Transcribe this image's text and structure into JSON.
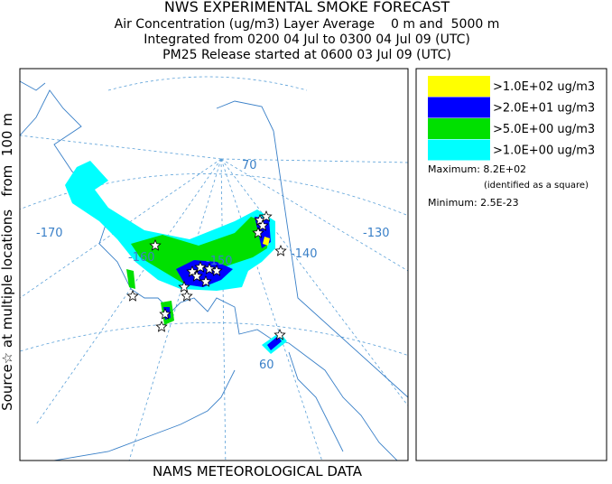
{
  "header": {
    "title": "NWS EXPERIMENTAL SMOKE FORECAST",
    "lines": [
      "Air Concentration (ug/m3) Layer Average    0 m and  5000 m",
      "Integrated from 0200 04 Jul to 0300 04 Jul 09 (UTC)",
      "PM25 Release started at 0600 03 Jul 09 (UTC)"
    ]
  },
  "side_label": "Source☆ at multiple locations   from  100 m",
  "footer": "NAMS METEOROLOGICAL DATA",
  "legend": {
    "entries": [
      {
        "label": ">1.0E+02 ug/m3",
        "color": "#ffff00"
      },
      {
        "label": ">2.0E+01 ug/m3",
        "color": "#0000ff"
      },
      {
        "label": ">5.0E+00 ug/m3",
        "color": "#00e000"
      },
      {
        "label": ">1.0E+00 ug/m3",
        "color": "#00ffff"
      }
    ],
    "maximum": "Maximum: 8.2E+02",
    "max_note": "(identified as a square)",
    "minimum": "Minimum: 2.5E-23"
  },
  "map": {
    "labels": [
      "-170",
      "-160",
      "-150",
      "-140",
      "-130",
      "70",
      "60"
    ]
  }
}
